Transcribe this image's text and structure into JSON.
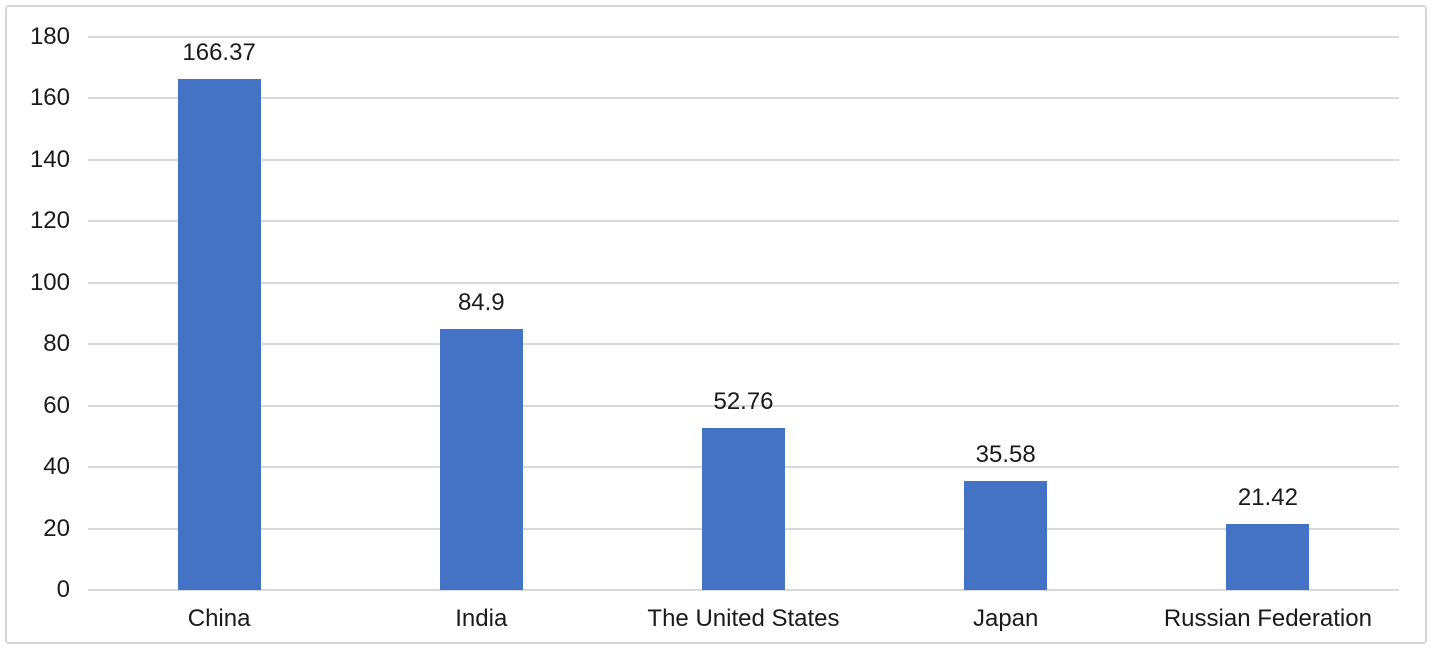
{
  "chart_data": {
    "type": "bar",
    "title": "",
    "xlabel": "",
    "ylabel": "",
    "categories": [
      "China",
      "India",
      "The United States",
      "Japan",
      "Russian Federation"
    ],
    "values": [
      166.37,
      84.9,
      52.76,
      35.58,
      21.42
    ],
    "data_labels": [
      "166.37",
      "84.9",
      "52.76",
      "35.58",
      "21.42"
    ],
    "yticks": [
      "0",
      "20",
      "40",
      "60",
      "80",
      "100",
      "120",
      "140",
      "160",
      "180"
    ],
    "ytick_values": [
      0,
      20,
      40,
      60,
      80,
      100,
      120,
      140,
      160,
      180
    ],
    "ylim": [
      0,
      180
    ],
    "grid": true,
    "legend": false,
    "colors": {
      "bar": "#4472C4",
      "gridline": "#D9D9D9",
      "axis_line": "#D9D9D9",
      "text": "#1A1A1A",
      "frame_border": "#D6D6D6",
      "background": "#FFFFFF"
    }
  }
}
